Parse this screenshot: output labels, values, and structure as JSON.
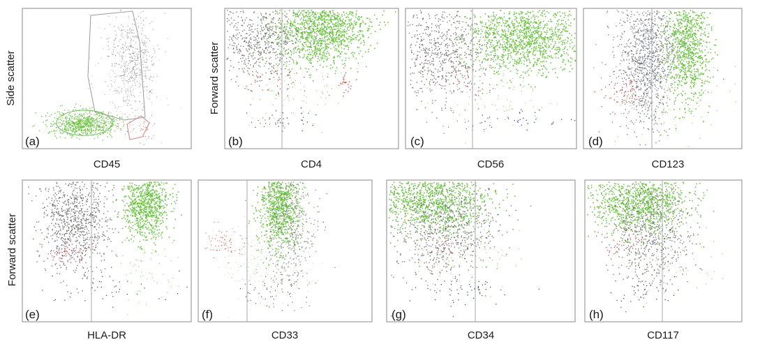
{
  "figure": {
    "y_label_scatter": "Forward scatter",
    "y_label_side": "Side scatter"
  },
  "colors": {
    "gray_cells": "#5a5a5a",
    "green_cells": "#66c23c",
    "red_cells": "#cc2a1e",
    "blue_cells": "#2a3a8c",
    "black_cells": "#1f1f1f"
  },
  "chart_data": [
    {
      "panel": "(a)",
      "type": "scatter",
      "xlabel": "CD45",
      "ylabel": "Side scatter",
      "populations": [
        "gray",
        "green",
        "red"
      ],
      "gates": [
        "lymphocyte-gate",
        "blast-gate",
        "granulocyte-gate"
      ]
    },
    {
      "panel": "(b)",
      "type": "scatter",
      "xlabel": "CD4",
      "ylabel": "Forward scatter",
      "threshold_fraction": 0.33,
      "populations": [
        "gray",
        "green",
        "red",
        "blue"
      ]
    },
    {
      "panel": "(c)",
      "type": "scatter",
      "xlabel": "CD56",
      "ylabel": "",
      "threshold_fraction": 0.39,
      "populations": [
        "gray",
        "green",
        "red",
        "blue"
      ]
    },
    {
      "panel": "(d)",
      "type": "scatter",
      "xlabel": "CD123",
      "ylabel": "",
      "threshold_fraction": 0.45,
      "populations": [
        "gray",
        "green",
        "red",
        "black"
      ]
    },
    {
      "panel": "(e)",
      "type": "scatter",
      "xlabel": "HLA-DR",
      "ylabel": "Forward scatter",
      "threshold_fraction": 0.41,
      "populations": [
        "gray",
        "green",
        "red",
        "black"
      ]
    },
    {
      "panel": "(f)",
      "type": "scatter",
      "xlabel": "CD33",
      "ylabel": "",
      "threshold_fraction": 0.28,
      "populations": [
        "gray",
        "green",
        "red",
        "black"
      ]
    },
    {
      "panel": "(g)",
      "type": "scatter",
      "xlabel": "CD34",
      "ylabel": "",
      "threshold_fraction": 0.47,
      "populations": [
        "gray",
        "green",
        "red",
        "black"
      ]
    },
    {
      "panel": "(h)",
      "type": "scatter",
      "xlabel": "CD117",
      "ylabel": "",
      "threshold_fraction": 0.43,
      "populations": [
        "gray",
        "green",
        "red",
        "black"
      ]
    }
  ]
}
